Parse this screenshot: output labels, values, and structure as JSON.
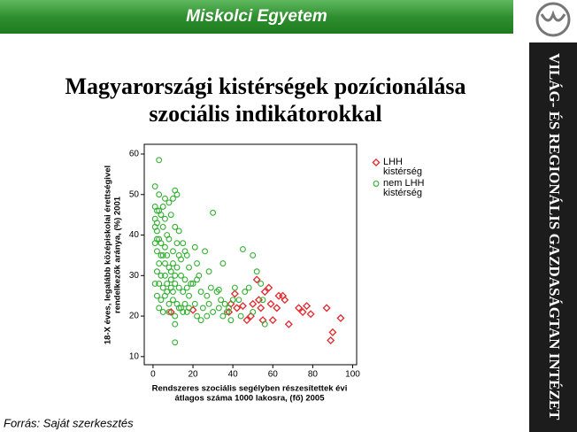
{
  "header": {
    "title": "Miskolci Egyetem"
  },
  "sidebar": {
    "text": "VILÁG- ÉS REGIONÁLIS GAZDASÁGTAN INTÉZET"
  },
  "slide": {
    "title": [
      "Magyarországi kistérségek pozícionálása",
      "szociális indikátorokkal"
    ]
  },
  "footer": {
    "source": "Forrás: Saját szerkesztés"
  },
  "chart_data": {
    "type": "scatter",
    "xlabel": [
      "Rendszeres szociális segélyben részesítettek évi",
      "átlagos száma 1000 lakosra, (fő) 2005"
    ],
    "ylabel": [
      "18-X éves, legalább középiskolai érettségivel",
      "rendelkezők aránya, (%) 2001"
    ],
    "xlim": [
      -4.4,
      102
    ],
    "ylim": [
      8,
      62.4
    ],
    "xticks": [
      0,
      20,
      40,
      60,
      80,
      100
    ],
    "yticks": [
      10,
      20,
      30,
      40,
      50,
      60
    ],
    "grid": false,
    "legend": "right",
    "series": [
      {
        "name": "LHH kistérség",
        "color": "#e0282e",
        "marker": "diamond",
        "x": [
          9,
          20,
          38,
          39,
          41,
          45,
          47,
          49,
          50,
          52,
          53,
          54,
          55,
          56,
          58,
          59,
          62,
          63,
          65,
          66,
          68,
          73,
          75,
          77,
          79,
          87,
          89,
          90,
          94,
          42,
          60
        ],
        "y": [
          21,
          21.5,
          21,
          23,
          25.5,
          22.5,
          19,
          20,
          23,
          29,
          24,
          22,
          19,
          26,
          27,
          23,
          22,
          25,
          25,
          24,
          18,
          22,
          21,
          22.5,
          20.5,
          22,
          14,
          16,
          19.5,
          22,
          19
        ]
      },
      {
        "name": "nem LHH kistérség",
        "color": "#34b034",
        "marker": "circle",
        "x": [
          3,
          1,
          3,
          6,
          11,
          12,
          10,
          1,
          2,
          3,
          5,
          8,
          4,
          1,
          2,
          6,
          9,
          30,
          2,
          5,
          7,
          11,
          13,
          3,
          4,
          1,
          8,
          12,
          15,
          16,
          2,
          5,
          7,
          10,
          13,
          17,
          21,
          26,
          45,
          50,
          52,
          3,
          6,
          8,
          10,
          14,
          18,
          22,
          28,
          35,
          2,
          4,
          6,
          9,
          11,
          14,
          16,
          19,
          22,
          1,
          3,
          5,
          7,
          9,
          11,
          13,
          15,
          17,
          20,
          24,
          27,
          29,
          32,
          2,
          4,
          6,
          8,
          10,
          12,
          14,
          16,
          18,
          21,
          25,
          28,
          30,
          33,
          36,
          38,
          40,
          43,
          46,
          48,
          54,
          55,
          3,
          5,
          8,
          11,
          13,
          17,
          22,
          24,
          27,
          35,
          37,
          39,
          44,
          50,
          56,
          41,
          11,
          11,
          33,
          15,
          7,
          9,
          12,
          4,
          6,
          1,
          2,
          10,
          18,
          23,
          34
        ],
        "y": [
          58.5,
          52,
          50,
          49,
          51,
          50,
          49,
          47,
          46,
          46,
          47,
          48,
          45,
          44,
          43,
          44,
          45,
          45.5,
          41,
          42,
          40,
          42,
          41,
          39,
          38,
          38,
          39,
          38,
          38,
          36,
          36,
          35,
          35,
          36,
          35,
          35,
          37,
          36,
          36.5,
          35,
          31,
          33,
          33,
          32,
          33,
          34,
          32,
          33,
          31,
          33,
          31,
          30,
          30,
          31,
          30,
          30,
          29,
          28,
          29,
          28,
          28,
          27,
          28,
          27,
          28,
          27,
          26,
          27,
          28,
          26,
          25,
          27,
          26,
          25,
          24,
          25,
          23,
          24,
          23,
          22,
          23,
          22,
          23,
          22,
          23,
          21,
          22,
          23,
          22,
          24,
          24,
          26,
          27,
          28,
          24,
          22,
          21,
          21,
          20,
          22,
          21,
          20,
          19,
          20,
          20,
          21,
          19,
          20,
          21,
          18,
          27,
          13.5,
          18,
          26.5,
          21,
          26,
          29,
          32,
          35,
          37,
          42,
          39,
          26,
          25,
          30,
          24
        ]
      }
    ]
  }
}
